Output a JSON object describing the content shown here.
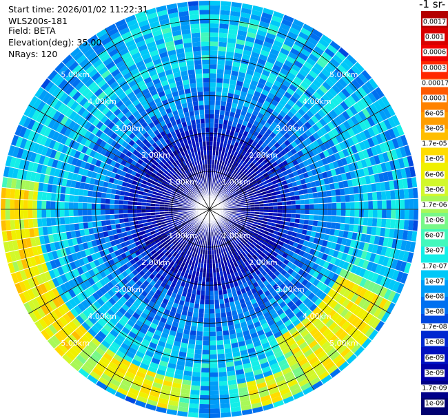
{
  "header": {
    "start_time": "Start time: 2026/01/02 11:22:31",
    "instrument": "WLS200s-181",
    "field": "Field: BETA",
    "elevation": "Elevation(deg): 35.00",
    "nrays": "NRays: 120"
  },
  "colorbar": {
    "unit_label": "-1 sr-",
    "ticks": [
      "0.0017",
      "0.001",
      "0.0006",
      "0.0003",
      "0.00017",
      "0.0001",
      "6e-05",
      "3e-05",
      "1.7e-05",
      "1e-05",
      "6e-06",
      "3e-06",
      "1.7e-06",
      "1e-06",
      "6e-07",
      "3e-07",
      "1.7e-07",
      "1e-07",
      "6e-08",
      "3e-08",
      "1.7e-08",
      "1e-08",
      "6e-09",
      "3e-09",
      "1.7e-09",
      "1e-09"
    ],
    "colors": [
      "#b40000",
      "#d80000",
      "#f00000",
      "#ff2800",
      "#ff5a00",
      "#ff8200",
      "#ff9e00",
      "#ffbe00",
      "#ffdc00",
      "#f0f000",
      "#d2f82a",
      "#a8f858",
      "#78f888",
      "#42f8bc",
      "#14eee8",
      "#00c8f8",
      "#009cf8",
      "#0070f0",
      "#0048e0",
      "#0028d0",
      "#0010c0",
      "#0000a8",
      "#000088",
      "#000070"
    ]
  },
  "chart_data": {
    "type": "ppi",
    "field": "BETA",
    "instrument": "WLS200s-181",
    "start_time": "2026/01/02 11:22:31",
    "elevation_deg": 35.0,
    "nrays": 120,
    "range_rings_km": [
      1,
      2,
      3,
      4,
      5
    ],
    "range_ring_labels": [
      "1.00km",
      "2.00km",
      "3.00km",
      "4.00km",
      "5.00km"
    ],
    "max_range_km": 5.5,
    "spokes_deg": [
      0,
      30,
      60,
      90,
      120,
      150,
      180,
      210,
      240,
      270,
      300,
      330
    ],
    "ring_label_azimuths_deg": [
      45,
      135,
      225,
      315
    ],
    "colorscale": "log10",
    "colorbar_range": [
      1e-09,
      0.0017
    ],
    "radial_profile": {
      "range_km": [
        0,
        1,
        2,
        2.5,
        3,
        3.5,
        4,
        4.5,
        5,
        5.5
      ],
      "log10_beta": [
        -8.6,
        -8.5,
        -8.0,
        -7.4,
        -7.2,
        -7.0,
        -6.8,
        -6.8,
        -6.8,
        -7.1
      ]
    },
    "enhanced_sectors": [
      {
        "azimuth_deg": [
          118,
          150
        ],
        "range_km": [
          3.8,
          5.4
        ],
        "log10_beta_peak": -4.9
      },
      {
        "azimuth_deg": [
          155,
          168
        ],
        "range_km": [
          4.7,
          5.4
        ],
        "log10_beta_peak": -5.0
      },
      {
        "azimuth_deg": [
          190,
          215
        ],
        "range_km": [
          4.6,
          5.4
        ],
        "log10_beta_peak": -4.9
      },
      {
        "azimuth_deg": [
          222,
          275
        ],
        "range_km": [
          4.5,
          5.5
        ],
        "log10_beta_peak": -4.7
      }
    ]
  }
}
